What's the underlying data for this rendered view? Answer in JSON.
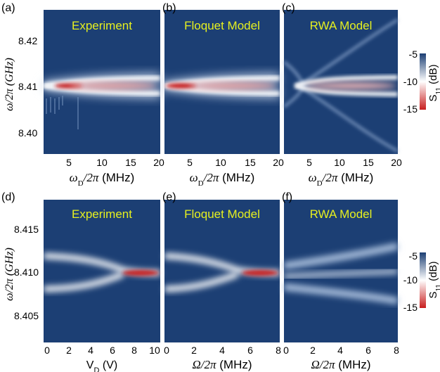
{
  "figure_panels": [
    {
      "letter": "(a)",
      "title": "Experiment"
    },
    {
      "letter": "(b)",
      "title": "Floquet Model"
    },
    {
      "letter": "(c)",
      "title": "RWA Model"
    },
    {
      "letter": "(d)",
      "title": "Experiment"
    },
    {
      "letter": "(e)",
      "title": "Floquet Model"
    },
    {
      "letter": "(f)",
      "title": "RWA Model"
    }
  ],
  "axes": {
    "top_ylabel": "ω/2π (GHz)",
    "bottom_ylabel": "ω/2π (GHz)",
    "top_xlabel": "ωD/2π (MHz)",
    "vd_xlabel": "VD (V)",
    "omega_xlabel": "Ω/2π (MHz)",
    "colorbar_label": "S11 (dB)"
  },
  "colors": {
    "background_dark": "#1c3f74",
    "ridge_white": "#ffffff",
    "dip_red": "#c81e1e",
    "title_yellow": "#e6f01f"
  },
  "chart_data": [
    {
      "type": "heatmap",
      "panel": "a",
      "title": "Experiment",
      "x_range": [
        0,
        20
      ],
      "xticks": [
        5,
        10,
        15,
        20
      ],
      "y_range_ghz": [
        8.39,
        8.427
      ],
      "yticks": [
        8.4,
        8.41,
        8.42
      ],
      "ridges": [
        {
          "x_start": 0,
          "y_start": 8.41,
          "y_end_upper": 8.4115,
          "y_end_lower": 8.4088
        }
      ],
      "deepest_dip_db": -15,
      "colorbar_range_db": [
        -15,
        -5
      ],
      "colorbar_ticks": [
        -5,
        -10,
        -15
      ]
    },
    {
      "type": "heatmap",
      "panel": "b",
      "title": "Floquet Model",
      "x_range": [
        0,
        20
      ],
      "xticks": [
        5,
        10,
        15,
        20
      ],
      "y_range_ghz": [
        8.39,
        8.427
      ],
      "ridges": [
        {
          "x_start": 0,
          "y_start": 8.41,
          "y_end_upper": 8.4115,
          "y_end_lower": 8.4088
        }
      ]
    },
    {
      "type": "heatmap",
      "panel": "c",
      "title": "RWA Model",
      "x_range": [
        0,
        20
      ],
      "xticks": [
        5,
        10,
        15,
        20
      ],
      "y_range_ghz": [
        8.39,
        8.427
      ],
      "ridges": [
        {
          "x_start": 0,
          "y_start_upper": 8.4125,
          "y_start_lower": 8.4075,
          "y_end_upper": 8.4115,
          "y_end_lower": 8.4088
        }
      ],
      "colorbar_range_db": [
        -15,
        -5
      ],
      "colorbar_ticks": [
        -5,
        -10,
        -15
      ]
    },
    {
      "type": "heatmap",
      "panel": "d",
      "title": "Experiment",
      "x_range": [
        0,
        10.5
      ],
      "xticks": [
        0,
        2,
        4,
        6,
        8,
        10
      ],
      "y_range_ghz": [
        8.402,
        8.418
      ],
      "yticks": [
        8.405,
        8.41,
        8.415
      ],
      "ridges": [
        {
          "x_start": 0,
          "y_start_upper": 8.4115,
          "y_start_lower": 8.408,
          "merge_x": 6,
          "y_merged": 8.4097
        }
      ]
    },
    {
      "type": "heatmap",
      "panel": "e",
      "title": "Floquet Model",
      "x_range": [
        0,
        8.2
      ],
      "xticks": [
        0,
        2,
        4,
        6,
        8
      ],
      "y_range_ghz": [
        8.402,
        8.418
      ],
      "ridges": [
        {
          "x_start": 0,
          "y_start_upper": 8.4115,
          "y_start_lower": 8.408,
          "merge_x": 5,
          "y_merged": 8.4097
        }
      ]
    },
    {
      "type": "heatmap",
      "panel": "f",
      "title": "RWA Model",
      "x_range": [
        0,
        8.2
      ],
      "xticks": [
        0,
        2,
        4,
        6,
        8
      ],
      "y_range_ghz": [
        8.402,
        8.418
      ],
      "ridges": [
        {
          "x_start": 0,
          "y_start_upper": 8.4105,
          "y_start_lower": 8.407,
          "y_end_upper": 8.4125,
          "y_end_lower": 8.406
        }
      ],
      "colorbar_range_db": [
        -15,
        -5
      ],
      "colorbar_ticks": [
        -5,
        -10,
        -15
      ]
    }
  ]
}
